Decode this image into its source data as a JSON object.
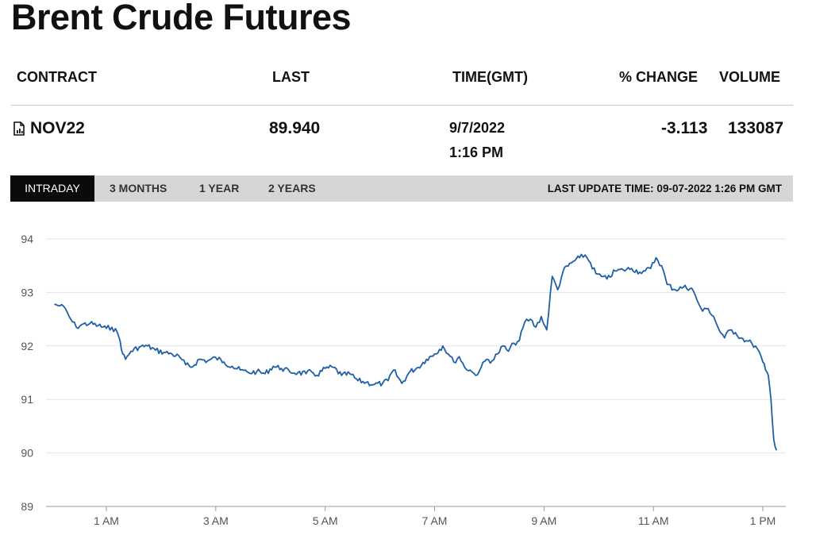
{
  "page": {
    "title": "Brent Crude Futures"
  },
  "quote_table": {
    "headers": {
      "contract": "CONTRACT",
      "last": "LAST",
      "time": "TIME(GMT)",
      "pct_change": "% CHANGE",
      "volume": "VOLUME"
    },
    "row": {
      "contract": "NOV22",
      "contract_icon": "chart-document-icon",
      "last": "89.940",
      "date": "9/7/2022",
      "time": "1:16 PM",
      "pct_change": "-3.113",
      "volume": "133087"
    }
  },
  "tabs": [
    {
      "label": "INTRADAY",
      "active": true
    },
    {
      "label": "3 MONTHS",
      "active": false
    },
    {
      "label": "1 YEAR",
      "active": false
    },
    {
      "label": "2 YEARS",
      "active": false
    }
  ],
  "last_update": "LAST UPDATE TIME: 09-07-2022 1:26 PM GMT",
  "colors": {
    "line": "#1f5fa6",
    "active_tab_bg": "#0b0b0b",
    "tabbar_bg": "#d6d6d6",
    "grid": "#e4e4e4"
  },
  "chart_data": {
    "type": "line",
    "title": "",
    "xlabel": "",
    "ylabel": "",
    "ylim": [
      89,
      94
    ],
    "yticks": [
      "89",
      "90",
      "91",
      "92",
      "93",
      "94"
    ],
    "xlim_hours": [
      0,
      13.3
    ],
    "xticks": [
      {
        "label": "1 AM",
        "hour": 1
      },
      {
        "label": "3 AM",
        "hour": 3
      },
      {
        "label": "5 AM",
        "hour": 5
      },
      {
        "label": "7 AM",
        "hour": 7
      },
      {
        "label": "9 AM",
        "hour": 9
      },
      {
        "label": "11 AM",
        "hour": 11
      },
      {
        "label": "1 PM",
        "hour": 13
      }
    ],
    "grid": true,
    "series": [
      {
        "x_hours": [
          0.05,
          0.15,
          0.25,
          0.32,
          0.38,
          0.45,
          0.55,
          0.7,
          0.85,
          1.0,
          1.1,
          1.2,
          1.25,
          1.3,
          1.35,
          1.45,
          1.6,
          1.75,
          1.9,
          2.05,
          2.2,
          2.35,
          2.45,
          2.55,
          2.7,
          2.85,
          3.0,
          3.15,
          3.3,
          3.45,
          3.6,
          3.75,
          3.9,
          4.05,
          4.2,
          4.35,
          4.5,
          4.65,
          4.75,
          4.85,
          5.0,
          5.15,
          5.3,
          5.45,
          5.6,
          5.75,
          5.9,
          6.05,
          6.15,
          6.25,
          6.4,
          6.55,
          6.7,
          6.85,
          7.0,
          7.15,
          7.25,
          7.35,
          7.45,
          7.55,
          7.65,
          7.75,
          7.85,
          7.95,
          8.05,
          8.15,
          8.25,
          8.35,
          8.45,
          8.55,
          8.65,
          8.75,
          8.85,
          8.95,
          9.0,
          9.05,
          9.15,
          9.25,
          9.35,
          9.5,
          9.65,
          9.75,
          9.85,
          9.95,
          10.05,
          10.15,
          10.3,
          10.45,
          10.6,
          10.75,
          10.85,
          10.95,
          11.05,
          11.15,
          11.25,
          11.4,
          11.55,
          11.7,
          11.8,
          11.9,
          12.0,
          12.1,
          12.2,
          12.3,
          12.4,
          12.5,
          12.6,
          12.7,
          12.8,
          12.9,
          13.0,
          13.05,
          13.1,
          13.15,
          13.2,
          13.25
        ],
        "y": [
          92.78,
          92.75,
          92.7,
          92.55,
          92.45,
          92.35,
          92.4,
          92.42,
          92.38,
          92.33,
          92.35,
          92.25,
          92.1,
          91.85,
          91.75,
          91.9,
          91.98,
          92.0,
          91.92,
          91.88,
          91.85,
          91.78,
          91.65,
          91.6,
          91.75,
          91.72,
          91.78,
          91.7,
          91.62,
          91.55,
          91.5,
          91.52,
          91.48,
          91.62,
          91.58,
          91.52,
          91.5,
          91.48,
          91.52,
          91.45,
          91.58,
          91.6,
          91.45,
          91.48,
          91.35,
          91.32,
          91.28,
          91.3,
          91.35,
          91.55,
          91.3,
          91.52,
          91.6,
          91.75,
          91.85,
          92.0,
          91.85,
          91.7,
          91.8,
          91.6,
          91.55,
          91.45,
          91.6,
          91.75,
          91.72,
          91.85,
          92.0,
          91.9,
          92.05,
          92.1,
          92.45,
          92.5,
          92.35,
          92.55,
          92.4,
          92.3,
          93.3,
          93.05,
          93.4,
          93.55,
          93.65,
          93.7,
          93.55,
          93.35,
          93.3,
          93.25,
          93.4,
          93.42,
          93.45,
          93.38,
          93.4,
          93.45,
          93.65,
          93.5,
          93.15,
          93.05,
          93.1,
          93.08,
          92.85,
          92.65,
          92.7,
          92.55,
          92.3,
          92.15,
          92.3,
          92.25,
          92.15,
          92.1,
          92.05,
          91.95,
          91.7,
          91.55,
          91.45,
          91.0,
          90.25,
          90.05
        ]
      }
    ]
  }
}
